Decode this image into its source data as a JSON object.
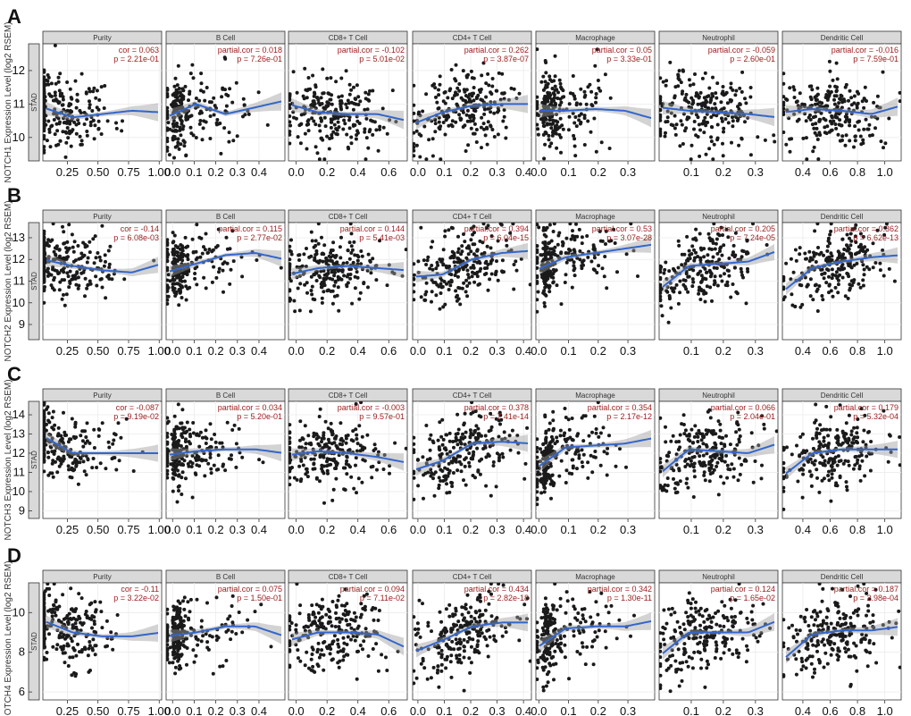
{
  "chart_data": {
    "type": "scatter",
    "title": "",
    "cancer_label": "STAD",
    "columns": [
      {
        "name": "Purity",
        "stat_label": "cor",
        "xlim": [
          0.05,
          1.02
        ],
        "xticks": [
          0.25,
          0.5,
          0.75,
          1.0
        ],
        "xtick_labels": [
          "0.25",
          "0.50",
          "0.75",
          "1.00"
        ],
        "dense_x": 0.05,
        "heavy": false
      },
      {
        "name": "B Cell",
        "stat_label": "partial.cor",
        "xlim": [
          -0.03,
          0.52
        ],
        "xticks": [
          0.0,
          0.1,
          0.2,
          0.3,
          0.4
        ],
        "xtick_labels": [
          "0.0",
          "0.1",
          "0.2",
          "0.3",
          "0.4"
        ],
        "dense_x": 0.02,
        "heavy": true
      },
      {
        "name": "CD8+ T Cell",
        "stat_label": "partial.cor",
        "xlim": [
          -0.05,
          0.72
        ],
        "xticks": [
          0.0,
          0.2,
          0.4,
          0.6
        ],
        "xtick_labels": [
          "0.0",
          "0.2",
          "0.4",
          "0.6"
        ],
        "dense_x": 0.1,
        "heavy": false
      },
      {
        "name": "CD4+ T Cell",
        "stat_label": "partial.cor",
        "xlim": [
          -0.02,
          0.43
        ],
        "xticks": [
          0.0,
          0.1,
          0.2,
          0.3,
          0.4
        ],
        "xtick_labels": [
          "0.0",
          "0.1",
          "0.2",
          "0.3",
          "0.4"
        ],
        "dense_x": 0.1,
        "heavy": false
      },
      {
        "name": "Macrophage",
        "stat_label": "partial.cor",
        "xlim": [
          -0.01,
          0.39
        ],
        "xticks": [
          0.0,
          0.1,
          0.2,
          0.3
        ],
        "xtick_labels": [
          "0.0",
          "0.1",
          "0.2",
          "0.3"
        ],
        "dense_x": 0.03,
        "heavy": true
      },
      {
        "name": "Neutrophil",
        "stat_label": "partial.cor",
        "xlim": [
          0.0,
          0.37
        ],
        "xticks": [
          0.1,
          0.2,
          0.3
        ],
        "xtick_labels": [
          "0.1",
          "0.2",
          "0.3"
        ],
        "dense_x": 0.08,
        "heavy": false
      },
      {
        "name": "Dendritic Cell",
        "stat_label": "partial.cor",
        "xlim": [
          0.25,
          1.12
        ],
        "xticks": [
          0.4,
          0.6,
          0.8,
          1.0
        ],
        "xtick_labels": [
          "0.4",
          "0.6",
          "0.8",
          "1.0"
        ],
        "dense_x": 0.5,
        "heavy": false
      }
    ],
    "rows": [
      {
        "letter": "A",
        "gene": "NOTCH1",
        "ylabel": "NOTCH1 Expression Level (log2 RSEM)",
        "ylim": [
          9.3,
          12.8
        ],
        "yticks": [
          10,
          11,
          12
        ],
        "ycenter": 10.8,
        "yspread": 0.55,
        "panels": [
          {
            "r": "0.063",
            "p": "2.21e-01",
            "curve": [
              10.9,
              10.6,
              10.7,
              10.8,
              10.75
            ]
          },
          {
            "r": "0.018",
            "p": "7.26e-01",
            "curve": [
              10.6,
              11.0,
              10.7,
              10.9,
              11.1
            ]
          },
          {
            "r": "-0.102",
            "p": "5.01e-02",
            "curve": [
              11.0,
              10.75,
              10.7,
              10.7,
              10.5
            ]
          },
          {
            "r": "0.262",
            "p": "3.87e-07",
            "curve": [
              10.4,
              10.75,
              10.95,
              11.0,
              11.0
            ]
          },
          {
            "r": "0.05",
            "p": "3.33e-01",
            "curve": [
              10.8,
              10.8,
              10.85,
              10.8,
              10.55
            ]
          },
          {
            "r": "-0.059",
            "p": "2.60e-01",
            "curve": [
              10.9,
              10.8,
              10.75,
              10.7,
              10.6
            ]
          },
          {
            "r": "-0.016",
            "p": "7.59e-01",
            "curve": [
              10.75,
              10.85,
              10.8,
              10.7,
              10.95
            ]
          }
        ]
      },
      {
        "letter": "B",
        "gene": "NOTCH2",
        "ylabel": "NOTCH2 Expression Level (log2 RSEM)",
        "ylim": [
          8.3,
          13.7
        ],
        "yticks": [
          9,
          10,
          11,
          12,
          13
        ],
        "ycenter": 11.6,
        "yspread": 0.75,
        "panels": [
          {
            "r": "-0.14",
            "p": "6.08e-03",
            "curve": [
              12.0,
              11.7,
              11.5,
              11.4,
              11.8
            ]
          },
          {
            "r": "0.115",
            "p": "2.77e-02",
            "curve": [
              11.4,
              11.8,
              12.2,
              12.3,
              12.0
            ]
          },
          {
            "r": "0.144",
            "p": "5.41e-03",
            "curve": [
              11.3,
              11.6,
              11.7,
              11.6,
              11.5
            ]
          },
          {
            "r": "0.394",
            "p": "6.04e-15",
            "curve": [
              11.2,
              11.3,
              12.0,
              12.3,
              12.4
            ]
          },
          {
            "r": "0.53",
            "p": "3.07e-28",
            "curve": [
              11.5,
              12.1,
              12.3,
              12.5,
              12.7
            ]
          },
          {
            "r": "0.205",
            "p": "7.24e-05",
            "curve": [
              10.6,
              11.7,
              11.8,
              11.9,
              12.4
            ]
          },
          {
            "r": "0.362",
            "p": "6.62e-13",
            "curve": [
              10.5,
              11.6,
              11.9,
              12.1,
              12.2
            ]
          }
        ]
      },
      {
        "letter": "C",
        "gene": "NOTCH3",
        "ylabel": "NOTCH3 Expression Level (log2 RSEM)",
        "ylim": [
          8.6,
          14.7
        ],
        "yticks": [
          9,
          10,
          11,
          12,
          13,
          14
        ],
        "ycenter": 12.0,
        "yspread": 0.9,
        "panels": [
          {
            "r": "-0.087",
            "p": "9.19e-02",
            "curve": [
              12.9,
              12.0,
              12.0,
              12.0,
              12.0
            ]
          },
          {
            "r": "0.034",
            "p": "5.20e-01",
            "curve": [
              11.9,
              12.1,
              12.2,
              12.2,
              12.0
            ]
          },
          {
            "r": "-0.003",
            "p": "9.57e-01",
            "curve": [
              11.9,
              12.1,
              12.0,
              11.8,
              11.5
            ]
          },
          {
            "r": "0.378",
            "p": "7.41e-14",
            "curve": [
              11.1,
              11.6,
              12.5,
              12.6,
              12.5
            ]
          },
          {
            "r": "0.354",
            "p": "2.17e-12",
            "curve": [
              11.2,
              12.3,
              12.4,
              12.5,
              12.8
            ]
          },
          {
            "r": "0.066",
            "p": "2.04e-01",
            "curve": [
              10.9,
              12.2,
              12.1,
              12.0,
              12.5
            ]
          },
          {
            "r": "0.179",
            "p": "5.32e-04",
            "curve": [
              10.8,
              12.0,
              12.2,
              12.2,
              12.2
            ]
          }
        ]
      },
      {
        "letter": "D",
        "gene": "NOTCH4",
        "ylabel": "NOTCH4 Expression Level (log2 RSEM)",
        "ylim": [
          5.6,
          11.5
        ],
        "yticks": [
          6,
          8,
          10
        ],
        "ycenter": 9.0,
        "yspread": 0.9,
        "panels": [
          {
            "r": "-0.11",
            "p": "3.22e-02",
            "curve": [
              9.6,
              9.0,
              8.8,
              8.8,
              9.0
            ]
          },
          {
            "r": "0.075",
            "p": "1.50e-01",
            "curve": [
              8.8,
              9.0,
              9.3,
              9.3,
              8.8
            ]
          },
          {
            "r": "0.094",
            "p": "7.11e-02",
            "curve": [
              8.6,
              9.0,
              9.0,
              8.9,
              8.2
            ]
          },
          {
            "r": "0.434",
            "p": "2.82e-18",
            "curve": [
              8.0,
              8.6,
              9.3,
              9.5,
              9.5
            ]
          },
          {
            "r": "0.342",
            "p": "1.30e-11",
            "curve": [
              8.2,
              9.2,
              9.3,
              9.3,
              9.6
            ]
          },
          {
            "r": "0.124",
            "p": "1.65e-02",
            "curve": [
              7.8,
              9.0,
              9.0,
              9.0,
              9.6
            ]
          },
          {
            "r": "0.187",
            "p": "2.98e-04",
            "curve": [
              7.6,
              8.9,
              9.1,
              9.1,
              9.3
            ]
          }
        ]
      }
    ]
  }
}
